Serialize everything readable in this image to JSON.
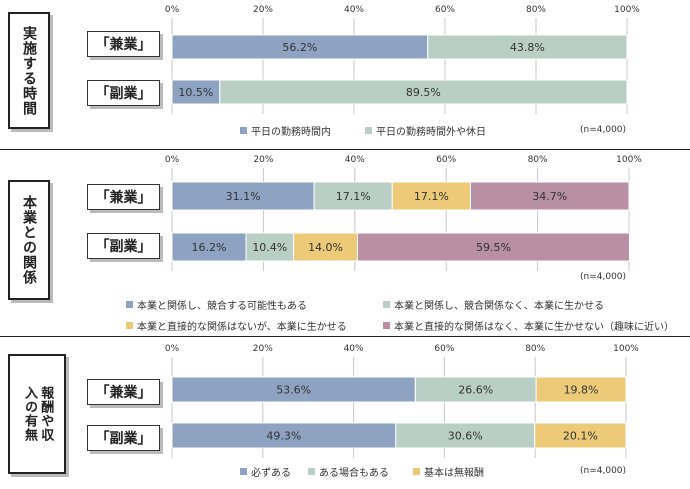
{
  "chart_data": [
    {
      "type": "bar",
      "orientation": "horizontal",
      "stacked": true,
      "percent": true,
      "panel_label": "実施する時間",
      "categories": [
        "「兼業」",
        "「副業」"
      ],
      "ticks": [
        "0%",
        "20%",
        "40%",
        "60%",
        "80%",
        "100%"
      ],
      "xlim": [
        0,
        100
      ],
      "grid": true,
      "legend_position": "bottom",
      "note": "(n=4,000)",
      "series": [
        {
          "name": "平日の勤務時間内",
          "color": "#8ea3c2",
          "values": [
            56.2,
            10.5
          ],
          "labels": [
            "56.2%",
            "10.5%"
          ]
        },
        {
          "name": "平日の勤務時間外や休日",
          "color": "#b9cfc6",
          "values": [
            43.8,
            89.5
          ],
          "labels": [
            "43.8%",
            "89.5%"
          ]
        }
      ]
    },
    {
      "type": "bar",
      "orientation": "horizontal",
      "stacked": true,
      "percent": true,
      "panel_label": "本業との関係",
      "categories": [
        "「兼業」",
        "「副業」"
      ],
      "ticks": [
        "0%",
        "20%",
        "40%",
        "60%",
        "80%",
        "100%"
      ],
      "xlim": [
        0,
        100
      ],
      "grid": true,
      "legend_position": "bottom",
      "note": "(n=4,000)",
      "series": [
        {
          "name": "本業と関係し、競合する可能性もある",
          "color": "#8ea3c2",
          "values": [
            31.1,
            16.2
          ],
          "labels": [
            "31.1%",
            "16.2%"
          ]
        },
        {
          "name": "本業と関係し、競合関係なく、本業に生かせる",
          "color": "#b9cfc6",
          "values": [
            17.1,
            10.4
          ],
          "labels": [
            "17.1%",
            "10.4%"
          ]
        },
        {
          "name": "本業と直接的な関係はないが、本業に生かせる",
          "color": "#ecca78",
          "values": [
            17.1,
            14.0
          ],
          "labels": [
            "17.1%",
            "14.0%"
          ]
        },
        {
          "name": "本業と直接的な関係はなく、本業に生かせない（趣味に近い）",
          "color": "#b88fa3",
          "values": [
            34.7,
            59.5
          ],
          "labels": [
            "34.7%",
            "59.5%"
          ]
        }
      ]
    },
    {
      "type": "bar",
      "orientation": "horizontal",
      "stacked": true,
      "percent": true,
      "panel_label": "報酬や収入の有無",
      "categories": [
        "「兼業」",
        "「副業」"
      ],
      "ticks": [
        "0%",
        "20%",
        "40%",
        "60%",
        "80%",
        "100%"
      ],
      "xlim": [
        0,
        100
      ],
      "grid": true,
      "legend_position": "bottom",
      "note": "(n=4,000)",
      "series": [
        {
          "name": "必ずある",
          "color": "#8ea3c2",
          "values": [
            53.6,
            49.3
          ],
          "labels": [
            "53.6%",
            "49.3%"
          ]
        },
        {
          "name": "ある場合もある",
          "color": "#b9cfc6",
          "values": [
            26.6,
            30.6
          ],
          "labels": [
            "26.6%",
            "30.6%"
          ]
        },
        {
          "name": "基本は無報酬",
          "color": "#ecca78",
          "values": [
            19.8,
            20.1
          ],
          "labels": [
            "19.8%",
            "20.1%"
          ]
        }
      ]
    }
  ]
}
